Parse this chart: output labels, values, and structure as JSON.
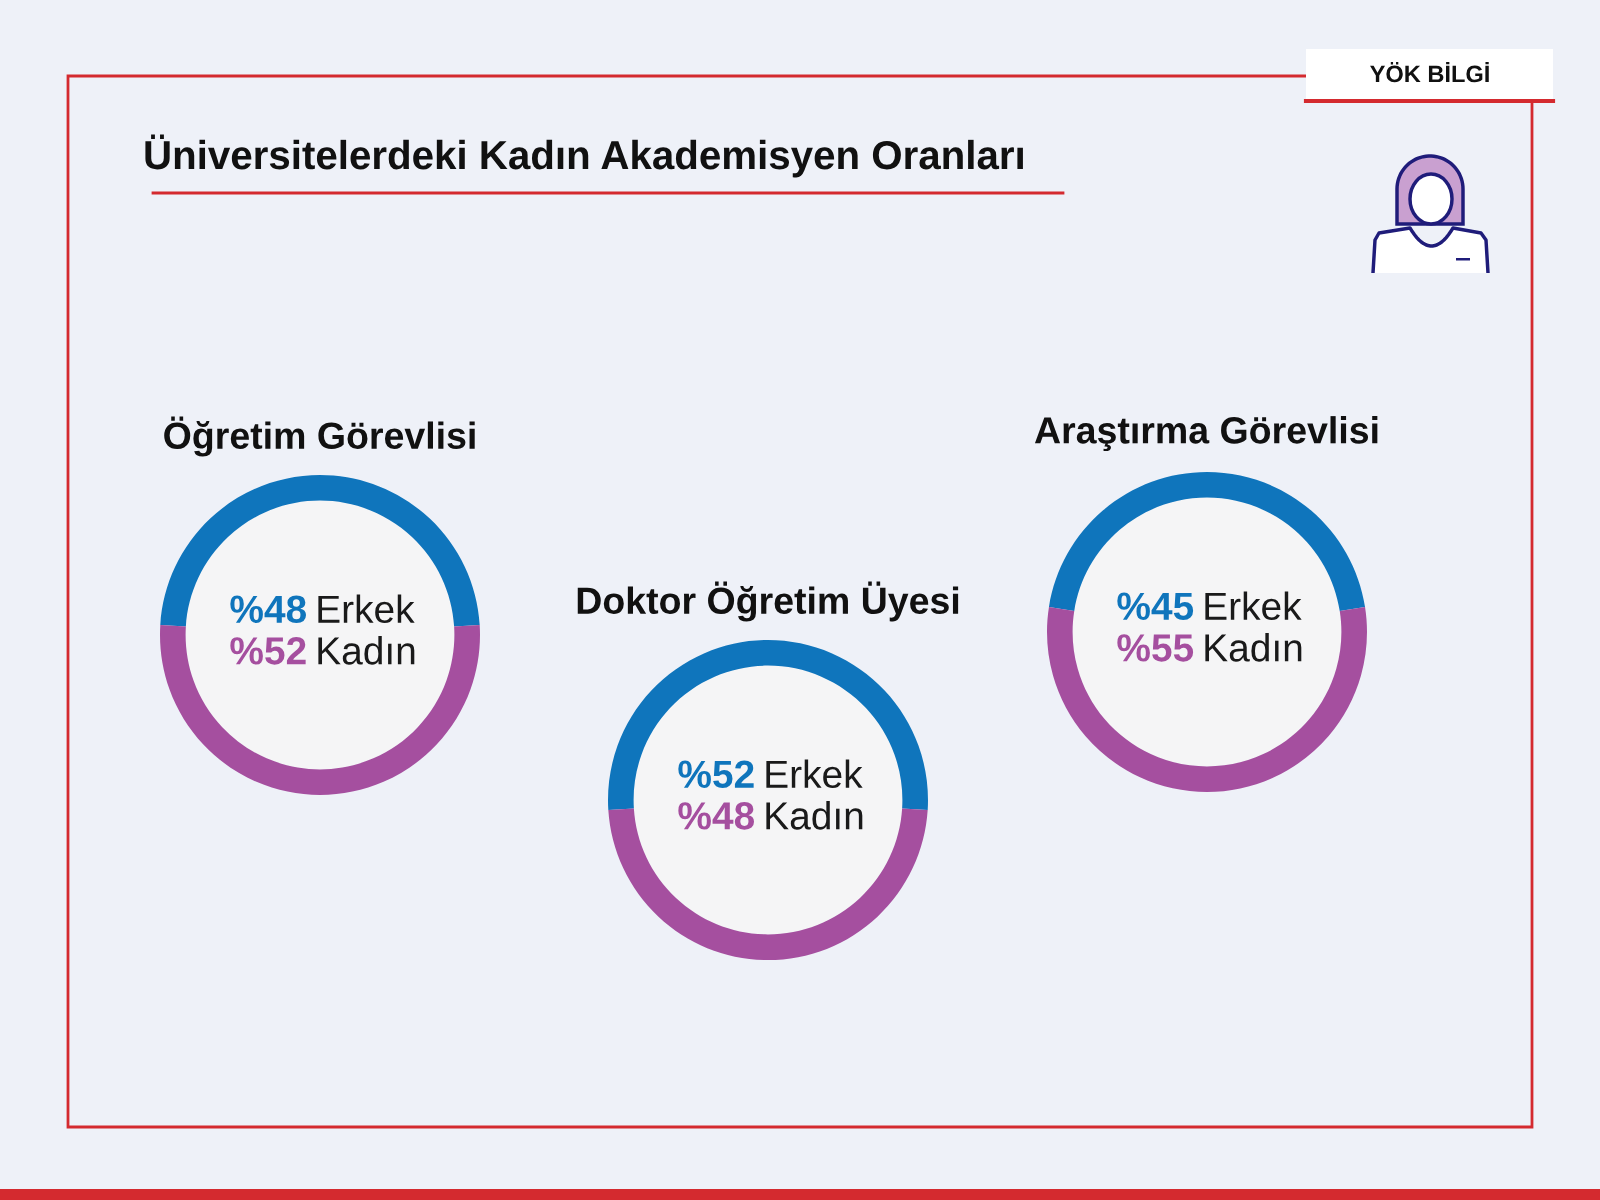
{
  "chart_data": [
    {
      "type": "other",
      "title": "Üniversitelerdeki Kadın Akademisyen Oranları",
      "annotations": [
        "YÖK BİLGİ"
      ]
    },
    {
      "type": "donut",
      "title": "Öğretim Görevlisi",
      "categories": [
        "Erkek",
        "Kadın"
      ],
      "values": [
        48,
        52
      ],
      "value_labels": [
        "%48",
        "%52"
      ],
      "colors": [
        "#0f75bc",
        "#a54f9f"
      ]
    },
    {
      "type": "donut",
      "title": "Doktor Öğretim Üyesi",
      "categories": [
        "Erkek",
        "Kadın"
      ],
      "values": [
        52,
        48
      ],
      "value_labels": [
        "%52",
        "%48"
      ],
      "colors": [
        "#0f75bc",
        "#a54f9f"
      ]
    },
    {
      "type": "donut",
      "title": "Araştırma Görevlisi",
      "categories": [
        "Erkek",
        "Kadın"
      ],
      "values": [
        45,
        55
      ],
      "value_labels": [
        "%45",
        "%55"
      ],
      "colors": [
        "#0f75bc",
        "#a54f9f"
      ]
    }
  ]
}
